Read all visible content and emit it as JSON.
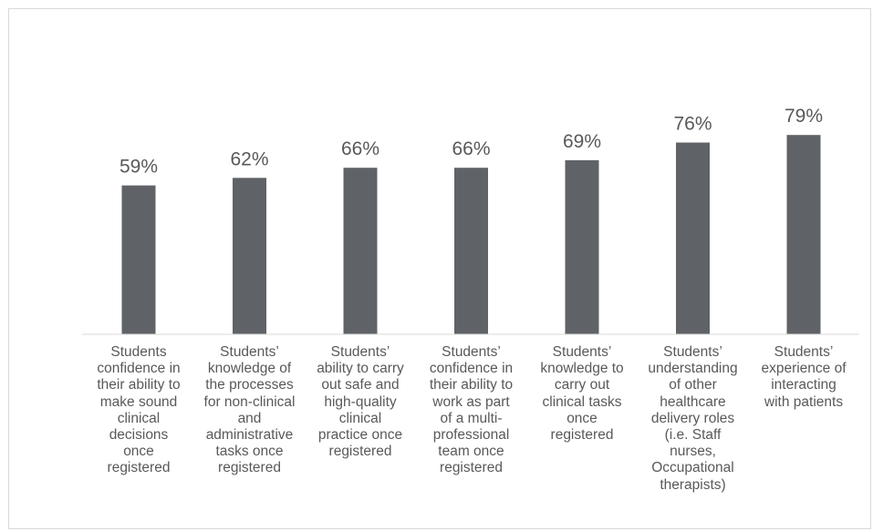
{
  "chart_data": {
    "type": "bar",
    "categories": [
      "Students confidence in their ability to make sound clinical decisions once registered",
      "Students’ knowledge of the processes for non-clinical and administrative tasks once registered",
      "Students’ ability to carry out safe and high-quality clinical practice once registered",
      "Students’ confidence in their ability to work as part of a multi-professional team once registered",
      "Students’ knowledge to carry out clinical tasks once registered",
      "Students’ understanding of other healthcare delivery roles (i.e. Staff nurses, Occupational therapists)",
      "Students’ experience of interacting with patients"
    ],
    "category_lines": [
      [
        "Students",
        "confidence in",
        "their ability to",
        "make sound",
        "clinical",
        "decisions",
        "once",
        "registered"
      ],
      [
        "Students’",
        "knowledge of",
        "the processes",
        "for non-clinical",
        "and",
        "administrative",
        "tasks once",
        "registered"
      ],
      [
        "Students’",
        "ability to carry",
        "out safe and",
        "high-quality",
        "clinical",
        "practice once",
        "registered"
      ],
      [
        "Students’",
        "confidence in",
        "their ability to",
        "work as part",
        "of a multi-",
        "professional",
        "team once",
        "registered"
      ],
      [
        "Students’",
        "knowledge to",
        "carry out",
        "clinical tasks",
        "once",
        "registered"
      ],
      [
        "Students’",
        "understanding",
        "of other",
        "healthcare",
        "delivery roles",
        "(i.e. Staff",
        "nurses,",
        "Occupational",
        "therapists)"
      ],
      [
        "Students’",
        "experience of",
        "interacting",
        "with patients"
      ]
    ],
    "values": [
      59,
      62,
      66,
      66,
      69,
      76,
      79
    ],
    "data_labels": [
      "59%",
      "62%",
      "66%",
      "66%",
      "69%",
      "76%",
      "79%"
    ],
    "title": "",
    "xlabel": "",
    "ylabel": "",
    "ylim": [
      0,
      100
    ],
    "grid": false,
    "legend": "none",
    "bar_color": "#5f6266",
    "axis_color": "#d9d9d9",
    "text_color": "#595959"
  }
}
